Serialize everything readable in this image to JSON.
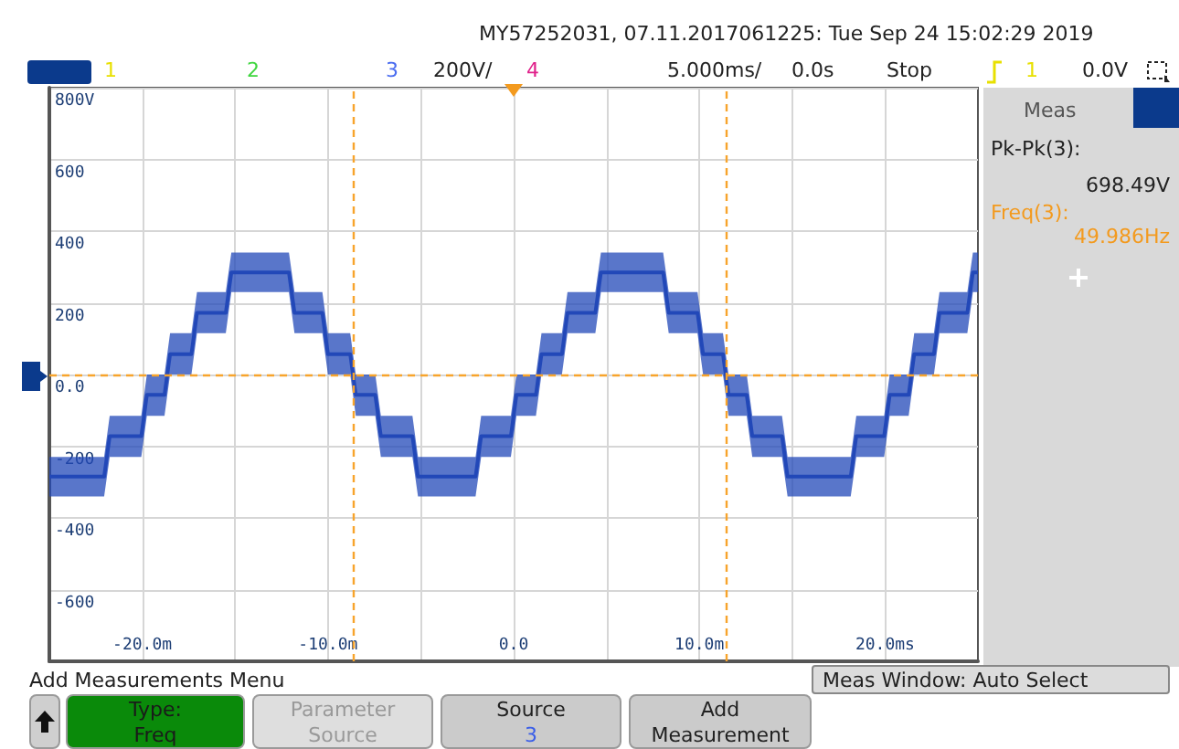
{
  "chart_data": {
    "type": "line",
    "annotations": [
      "MY57252031, 07.11.2017061225: Tue Sep 24 15:02:29 2019",
      "1",
      "2",
      "3",
      "200V/",
      "4",
      "5.000ms/",
      "0.0s",
      "Stop",
      "1",
      "0.0V",
      "Meas",
      "Pk-Pk(3):",
      "698.49V",
      "Freq(3):",
      "49.986Hz",
      "Add Measurements Menu",
      "Meas Window: Auto Select",
      "Type:",
      "Freq",
      "Parameter",
      "Source",
      "Source",
      "3",
      "Add",
      "Measurement"
    ],
    "x": [
      -25,
      -22.05,
      -21.75,
      -20.05,
      -19.75,
      -18.8,
      -18.5,
      -17.35,
      -17.05,
      -15.5,
      -15.2,
      -12.1,
      -11.8,
      -10.3,
      -10.0,
      -8.8,
      -8.5,
      -7.45,
      -7.15,
      -5.45,
      -5.15,
      -2.05,
      -1.75,
      -0.15,
      0.15,
      1.2,
      1.5,
      2.6,
      2.9,
      4.4,
      4.7,
      8.05,
      8.35,
      9.9,
      10.2,
      11.27,
      11.57,
      12.55,
      12.85,
      14.45,
      14.75,
      18.15,
      18.45,
      19.95,
      20.25,
      21.27,
      21.57,
      22.63,
      22.93,
      24.43,
      24.73,
      25
    ],
    "series": [
      {
        "color": "#2248b8",
        "values": [
          -285,
          -285,
          -172,
          -172,
          -57,
          -57,
          57,
          57,
          172,
          172,
          285,
          285,
          172,
          172,
          57,
          57,
          -57,
          -57,
          -172,
          -172,
          -285,
          -285,
          -172,
          -172,
          -57,
          -57,
          57,
          57,
          172,
          172,
          285,
          285,
          172,
          172,
          57,
          57,
          -57,
          -57,
          -172,
          -172,
          -285,
          -285,
          -172,
          -172,
          -57,
          -57,
          57,
          57,
          172,
          172,
          285,
          285
        ],
        "lower": [
          -340,
          -340,
          -230,
          -230,
          -115,
          -115,
          0,
          0,
          115,
          115,
          230,
          230,
          115,
          115,
          0,
          0,
          -115,
          -115,
          -230,
          -230,
          -340,
          -340,
          -230,
          -230,
          -115,
          -115,
          0,
          0,
          115,
          115,
          230,
          230,
          115,
          115,
          0,
          0,
          -115,
          -115,
          -230,
          -230,
          -340,
          -340,
          -230,
          -230,
          -115,
          -115,
          0,
          0,
          115,
          115,
          230,
          230
        ],
        "upper": [
          -230,
          -230,
          -115,
          -115,
          0,
          0,
          115,
          115,
          230,
          230,
          340,
          340,
          230,
          230,
          115,
          115,
          0,
          0,
          -115,
          -115,
          -230,
          -230,
          -115,
          -115,
          0,
          0,
          115,
          115,
          230,
          230,
          340,
          340,
          230,
          230,
          115,
          115,
          0,
          0,
          -115,
          -115,
          -230,
          -230,
          -115,
          -115,
          0,
          0,
          115,
          115,
          230,
          230,
          340,
          340
        ]
      }
    ],
    "xlim": [
      -25,
      25
    ],
    "xticks": [
      {
        "value": -20,
        "label": "-20.0m"
      },
      {
        "value": -15,
        "label": null
      },
      {
        "value": -10,
        "label": "-10.0m"
      },
      {
        "value": -5,
        "label": null
      },
      {
        "value": 0,
        "label": "0.0"
      },
      {
        "value": 5,
        "label": null
      },
      {
        "value": 10,
        "label": "10.0m"
      },
      {
        "value": 15,
        "label": null
      },
      {
        "value": 20,
        "label": "20.0ms"
      }
    ],
    "ylim": [
      -800,
      800
    ],
    "yticks": [
      {
        "value": 800,
        "label": "800V"
      },
      600,
      400,
      200,
      {
        "value": 0,
        "label": "0.0"
      },
      -200,
      -400,
      -600
    ],
    "ref_lines": [
      {
        "axis": "x",
        "value": -8.64,
        "color": "#f7a42c",
        "line_style": "dashed"
      },
      {
        "axis": "x",
        "value": 11.41,
        "color": "#f7a42c",
        "line_style": "dashed"
      },
      {
        "axis": "y",
        "value": 0,
        "color": "#f7a42c",
        "line_style": "dashed"
      }
    ],
    "grid": true
  }
}
